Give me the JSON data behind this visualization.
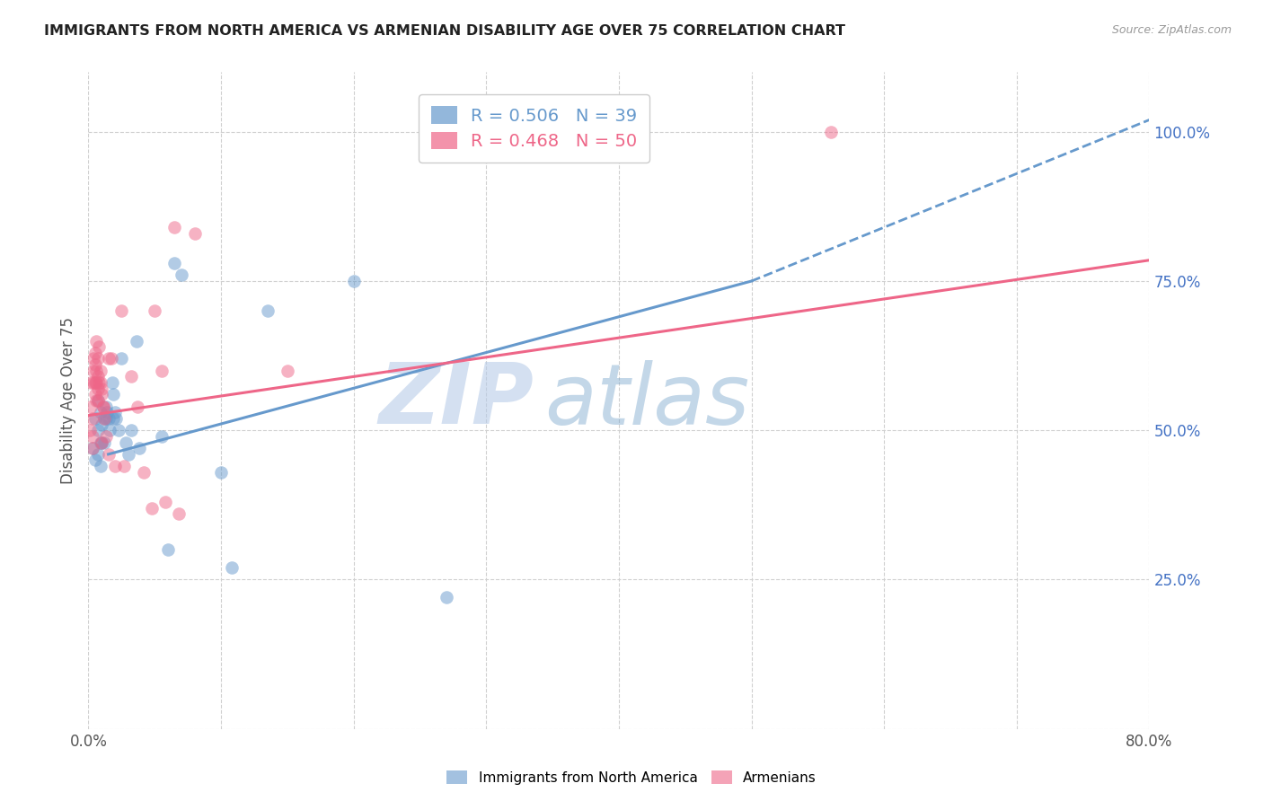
{
  "title": "IMMIGRANTS FROM NORTH AMERICA VS ARMENIAN DISABILITY AGE OVER 75 CORRELATION CHART",
  "source": "Source: ZipAtlas.com",
  "ylabel": "Disability Age Over 75",
  "x_ticks": [
    0.0,
    0.1,
    0.2,
    0.3,
    0.4,
    0.5,
    0.6,
    0.7,
    0.8
  ],
  "x_tick_labels_show": {
    "0.0": "0.0%",
    "0.8": "80.0%"
  },
  "y_ticks": [
    0.0,
    0.25,
    0.5,
    0.75,
    1.0
  ],
  "y_tick_labels": [
    "",
    "25.0%",
    "50.0%",
    "75.0%",
    "100.0%"
  ],
  "y_tick_color": "#4472c4",
  "xlim": [
    0.0,
    0.8
  ],
  "ylim": [
    0.0,
    1.1
  ],
  "legend_blue_r": "R = 0.506",
  "legend_blue_n": "N = 39",
  "legend_pink_r": "R = 0.468",
  "legend_pink_n": "N = 50",
  "legend_label_blue": "Immigrants from North America",
  "legend_label_pink": "Armenians",
  "blue_color": "#6699cc",
  "pink_color": "#ee6688",
  "blue_scatter": [
    [
      0.003,
      0.47
    ],
    [
      0.005,
      0.52
    ],
    [
      0.005,
      0.45
    ],
    [
      0.007,
      0.55
    ],
    [
      0.007,
      0.5
    ],
    [
      0.007,
      0.46
    ],
    [
      0.009,
      0.53
    ],
    [
      0.009,
      0.48
    ],
    [
      0.009,
      0.44
    ],
    [
      0.01,
      0.51
    ],
    [
      0.01,
      0.48
    ],
    [
      0.012,
      0.52
    ],
    [
      0.012,
      0.48
    ],
    [
      0.013,
      0.54
    ],
    [
      0.013,
      0.52
    ],
    [
      0.014,
      0.53
    ],
    [
      0.015,
      0.52
    ],
    [
      0.016,
      0.5
    ],
    [
      0.018,
      0.58
    ],
    [
      0.019,
      0.56
    ],
    [
      0.019,
      0.52
    ],
    [
      0.02,
      0.53
    ],
    [
      0.021,
      0.52
    ],
    [
      0.023,
      0.5
    ],
    [
      0.025,
      0.62
    ],
    [
      0.028,
      0.48
    ],
    [
      0.03,
      0.46
    ],
    [
      0.032,
      0.5
    ],
    [
      0.036,
      0.65
    ],
    [
      0.038,
      0.47
    ],
    [
      0.055,
      0.49
    ],
    [
      0.06,
      0.3
    ],
    [
      0.065,
      0.78
    ],
    [
      0.07,
      0.76
    ],
    [
      0.1,
      0.43
    ],
    [
      0.108,
      0.27
    ],
    [
      0.135,
      0.7
    ],
    [
      0.2,
      0.75
    ],
    [
      0.27,
      0.22
    ]
  ],
  "pink_scatter": [
    [
      0.001,
      0.5
    ],
    [
      0.002,
      0.58
    ],
    [
      0.002,
      0.54
    ],
    [
      0.003,
      0.52
    ],
    [
      0.003,
      0.49
    ],
    [
      0.003,
      0.47
    ],
    [
      0.004,
      0.62
    ],
    [
      0.004,
      0.6
    ],
    [
      0.004,
      0.58
    ],
    [
      0.005,
      0.63
    ],
    [
      0.005,
      0.61
    ],
    [
      0.005,
      0.58
    ],
    [
      0.005,
      0.56
    ],
    [
      0.006,
      0.65
    ],
    [
      0.006,
      0.6
    ],
    [
      0.006,
      0.58
    ],
    [
      0.006,
      0.55
    ],
    [
      0.007,
      0.62
    ],
    [
      0.007,
      0.59
    ],
    [
      0.007,
      0.57
    ],
    [
      0.007,
      0.55
    ],
    [
      0.008,
      0.64
    ],
    [
      0.008,
      0.58
    ],
    [
      0.009,
      0.6
    ],
    [
      0.009,
      0.58
    ],
    [
      0.01,
      0.57
    ],
    [
      0.01,
      0.56
    ],
    [
      0.01,
      0.48
    ],
    [
      0.011,
      0.54
    ],
    [
      0.011,
      0.54
    ],
    [
      0.012,
      0.52
    ],
    [
      0.013,
      0.49
    ],
    [
      0.015,
      0.62
    ],
    [
      0.015,
      0.46
    ],
    [
      0.017,
      0.62
    ],
    [
      0.02,
      0.44
    ],
    [
      0.025,
      0.7
    ],
    [
      0.027,
      0.44
    ],
    [
      0.032,
      0.59
    ],
    [
      0.037,
      0.54
    ],
    [
      0.042,
      0.43
    ],
    [
      0.048,
      0.37
    ],
    [
      0.05,
      0.7
    ],
    [
      0.055,
      0.6
    ],
    [
      0.058,
      0.38
    ],
    [
      0.065,
      0.84
    ],
    [
      0.068,
      0.36
    ],
    [
      0.08,
      0.83
    ],
    [
      0.15,
      0.6
    ],
    [
      0.56,
      1.0
    ]
  ],
  "blue_line_solid": [
    [
      0.015,
      0.46
    ],
    [
      0.5,
      0.75
    ]
  ],
  "blue_line_dashed": [
    [
      0.5,
      0.75
    ],
    [
      0.8,
      1.02
    ]
  ],
  "pink_line": [
    [
      0.0,
      0.525
    ],
    [
      0.8,
      0.785
    ]
  ],
  "watermark_zip": "ZIP",
  "watermark_atlas": "atlas",
  "grid_color": "#d0d0d0",
  "background_color": "#ffffff"
}
